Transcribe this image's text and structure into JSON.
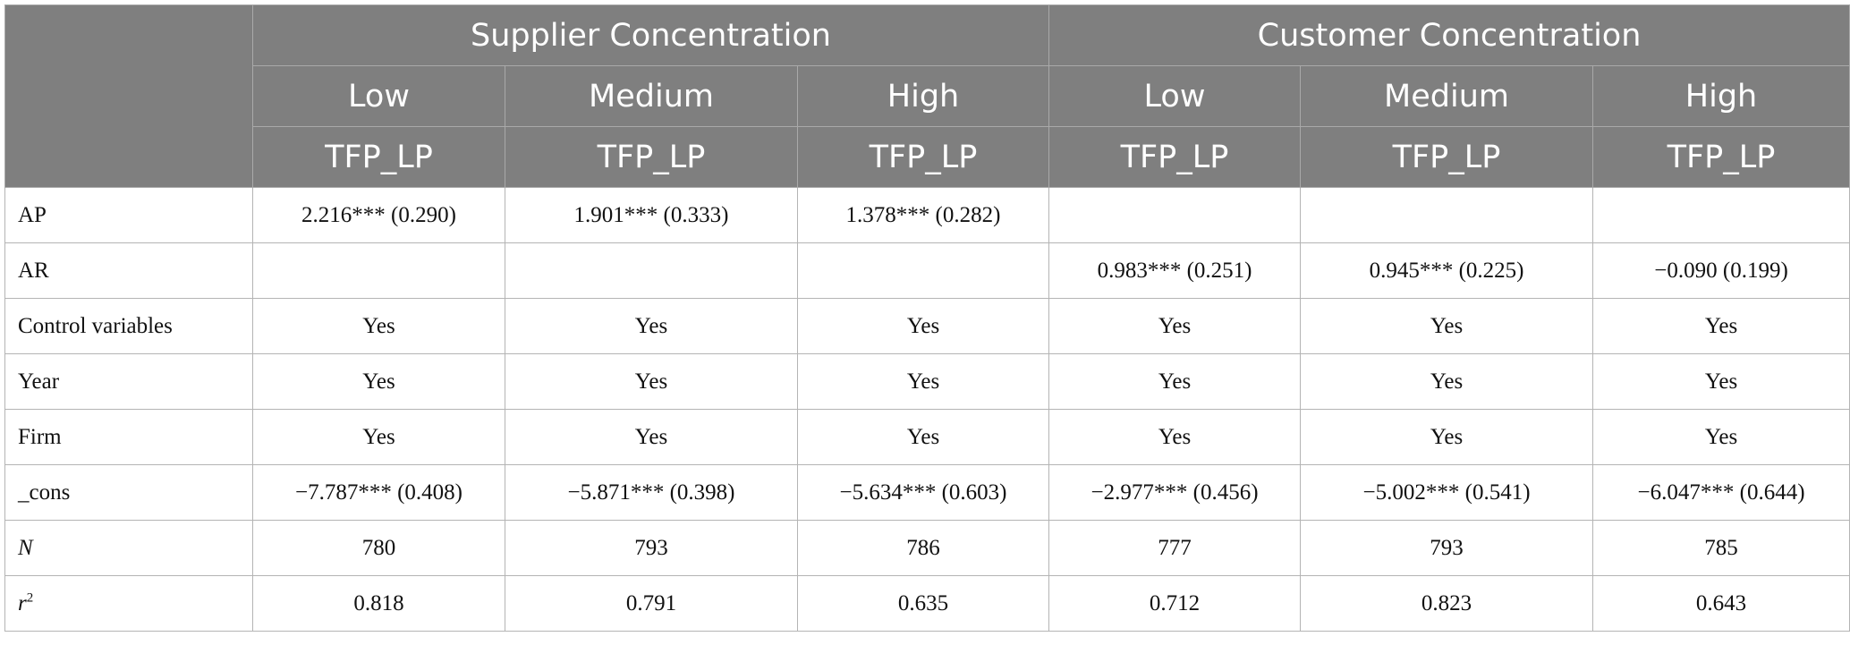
{
  "header": {
    "groups": [
      "Supplier Concentration",
      "Customer Concentration"
    ],
    "levels": [
      "Low",
      "Medium",
      "High",
      "Low",
      "Medium",
      "High"
    ],
    "dependent": [
      "TFP_LP",
      "TFP_LP",
      "TFP_LP",
      "TFP_LP",
      "TFP_LP",
      "TFP_LP"
    ]
  },
  "rows": [
    {
      "label": "AP",
      "cells": [
        "2.216*** (0.290)",
        "1.901*** (0.333)",
        "1.378*** (0.282)",
        "",
        "",
        ""
      ]
    },
    {
      "label": "AR",
      "cells": [
        "",
        "",
        "",
        "0.983*** (0.251)",
        "0.945*** (0.225)",
        "−0.090 (0.199)"
      ]
    },
    {
      "label": "Control variables",
      "cells": [
        "Yes",
        "Yes",
        "Yes",
        "Yes",
        "Yes",
        "Yes"
      ]
    },
    {
      "label": "Year",
      "cells": [
        "Yes",
        "Yes",
        "Yes",
        "Yes",
        "Yes",
        "Yes"
      ]
    },
    {
      "label": "Firm",
      "cells": [
        "Yes",
        "Yes",
        "Yes",
        "Yes",
        "Yes",
        "Yes"
      ]
    },
    {
      "label": "_cons",
      "cells": [
        "−7.787*** (0.408)",
        "−5.871*** (0.398)",
        "−5.634*** (0.603)",
        "−2.977*** (0.456)",
        "−5.002*** (0.541)",
        "−6.047*** (0.644)"
      ]
    },
    {
      "label": "N",
      "cells": [
        "780",
        "793",
        "786",
        "777",
        "793",
        "785"
      ]
    },
    {
      "label_base": "r",
      "label_sup": "2",
      "cells": [
        "0.818",
        "0.791",
        "0.635",
        "0.712",
        "0.823",
        "0.643"
      ]
    }
  ]
}
